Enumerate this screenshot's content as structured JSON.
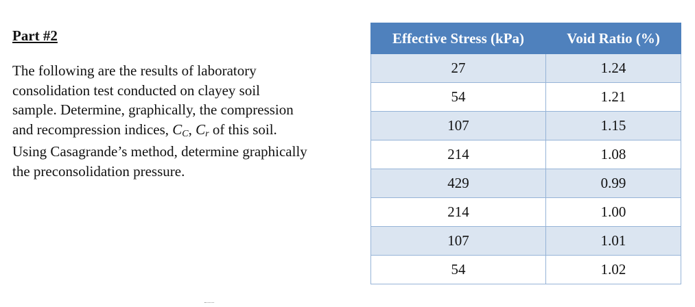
{
  "part_title": "Part #2",
  "problem": {
    "line1": "The following are the results of laboratory",
    "line2": "consolidation test conducted on clayey soil",
    "line3": "sample. Determine, graphically, the compression",
    "line4_pre": "and recompression indices, ",
    "cc_main": "C",
    "cc_sub": "C",
    "comma": ", ",
    "cr_main": "C",
    "cr_sub": "r",
    "line4_post": " of this soil.",
    "line5": "Using Casagrande’s method, determine graphically",
    "line6": "the preconsolidation pressure."
  },
  "table": {
    "headers": [
      "Effective Stress (kPa)",
      "Void Ratio (%)"
    ],
    "rows": [
      [
        "27",
        "1.24"
      ],
      [
        "54",
        "1.21"
      ],
      [
        "107",
        "1.15"
      ],
      [
        "214",
        "1.08"
      ],
      [
        "429",
        "0.99"
      ],
      [
        "214",
        "1.00"
      ],
      [
        "107",
        "1.01"
      ],
      [
        "54",
        "1.02"
      ]
    ]
  },
  "colors": {
    "header_bg": "#4f81bd",
    "band_bg": "#dbe5f1",
    "border": "#95b3d7"
  }
}
